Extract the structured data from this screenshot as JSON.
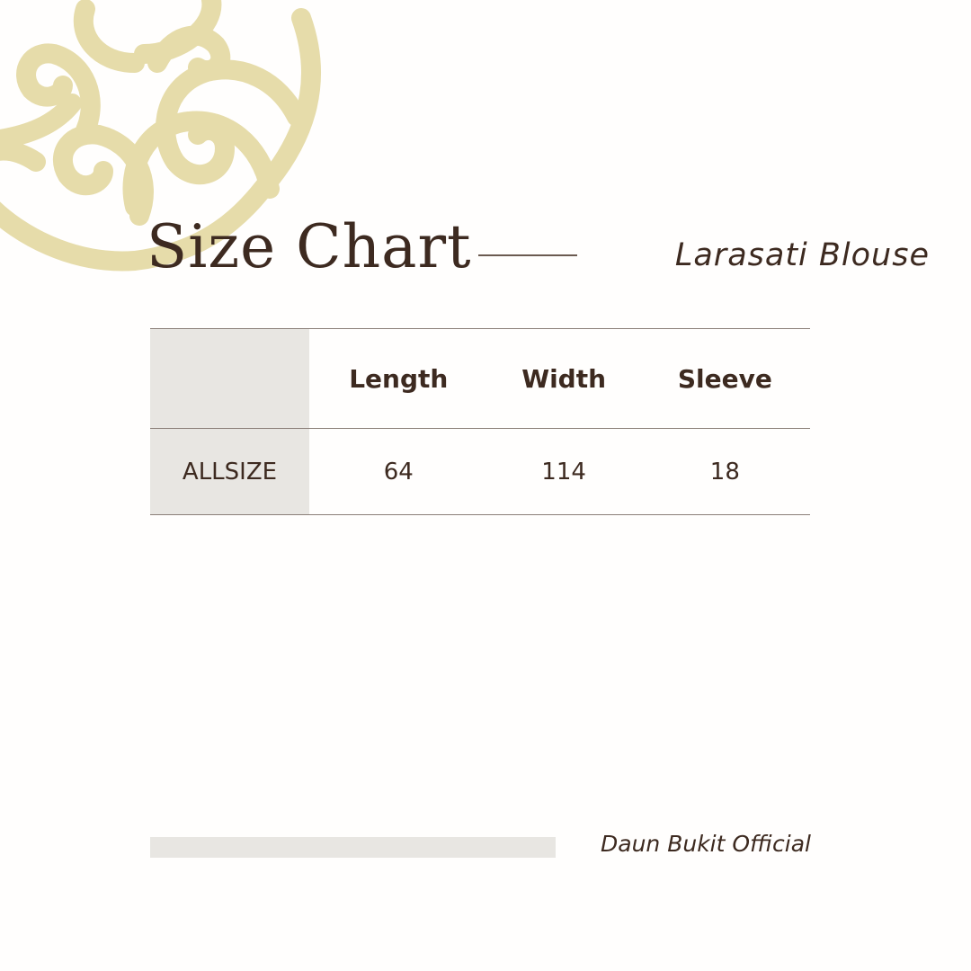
{
  "header": {
    "title": "Size Chart",
    "product": "Larasati Blouse"
  },
  "table": {
    "columns": [
      "",
      "Length",
      "Width",
      "Sleeve"
    ],
    "rows": [
      {
        "size": "ALLSIZE",
        "values": [
          "64",
          "114",
          "18"
        ]
      }
    ]
  },
  "footer": {
    "brand": "Daun Bukit Official"
  },
  "colors": {
    "ornament": "#e6dcaa",
    "text": "#3d2a20",
    "shade": "#e8e6e2"
  }
}
